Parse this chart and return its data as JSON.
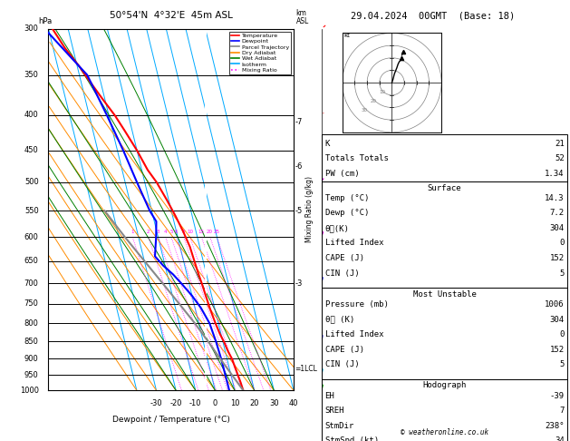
{
  "title_left": "50°54'N  4°32'E  45m ASL",
  "title_right": "29.04.2024  00GMT  (Base: 18)",
  "xlabel": "Dewpoint / Temperature (°C)",
  "pres_levels": [
    300,
    350,
    400,
    450,
    500,
    550,
    600,
    650,
    700,
    750,
    800,
    850,
    900,
    950,
    1000
  ],
  "pmin": 300,
  "pmax": 1000,
  "tmin": -40,
  "tmax": 40,
  "skew_factor": 45,
  "temp_profile_pres": [
    300,
    320,
    340,
    360,
    380,
    400,
    420,
    450,
    480,
    500,
    530,
    560,
    590,
    620,
    650,
    680,
    700,
    730,
    760,
    800,
    830,
    850,
    880,
    900,
    925,
    950,
    975,
    1000
  ],
  "temp_profile_temp": [
    -38,
    -34,
    -29,
    -25,
    -21,
    -17,
    -14,
    -10,
    -7,
    -4,
    -1,
    1.5,
    3.5,
    5,
    5.5,
    6,
    6.5,
    7,
    7.5,
    8.5,
    9.5,
    10.5,
    11.5,
    12.5,
    13,
    13.5,
    14,
    14.3
  ],
  "dewp_profile_pres": [
    300,
    350,
    400,
    450,
    500,
    550,
    570,
    600,
    640,
    660,
    680,
    700,
    730,
    760,
    800,
    850,
    900,
    950,
    1000
  ],
  "dewp_profile_temp": [
    -42,
    -26,
    -21,
    -17,
    -14,
    -11,
    -9,
    -11,
    -14,
    -11,
    -7,
    -4,
    0,
    3,
    5.5,
    6.5,
    7,
    7.1,
    7.2
  ],
  "parcel_profile_pres": [
    1000,
    950,
    900,
    850,
    800,
    750,
    700,
    650,
    600,
    550
  ],
  "parcel_profile_temp": [
    14.3,
    10.5,
    6.5,
    2.5,
    -2,
    -7.5,
    -13.5,
    -20,
    -27,
    -34
  ],
  "lcl_pressure": 930,
  "mixing_ratios": [
    1,
    2,
    3,
    4,
    5,
    6,
    8,
    10,
    15,
    20,
    25
  ],
  "km_asl": [
    {
      "km": 7,
      "pres": 410
    },
    {
      "km": 6,
      "pres": 475
    },
    {
      "km": 5,
      "pres": 550
    },
    {
      "km": 3,
      "pres": 700
    }
  ],
  "wind_barbs": [
    {
      "pres": 300,
      "speed": 35,
      "dir": 250,
      "color": "#FF0000"
    },
    {
      "pres": 400,
      "speed": 25,
      "dir": 245,
      "color": "#FF0000"
    },
    {
      "pres": 500,
      "speed": 15,
      "dir": 230,
      "color": "#CC00CC"
    },
    {
      "pres": 600,
      "speed": 10,
      "dir": 215,
      "color": "#CC00CC"
    },
    {
      "pres": 700,
      "speed": 8,
      "dir": 205,
      "color": "#0000FF"
    },
    {
      "pres": 850,
      "speed": 6,
      "dir": 200,
      "color": "#0000FF"
    },
    {
      "pres": 950,
      "speed": 5,
      "dir": 205,
      "color": "#00AAFF"
    },
    {
      "pres": 1000,
      "speed": 4,
      "dir": 210,
      "color": "#00AA00"
    }
  ],
  "colors": {
    "temperature": "#FF0000",
    "dewpoint": "#0000FF",
    "parcel": "#888888",
    "dry_adiabat": "#FF8C00",
    "wet_adiabat": "#008000",
    "isotherm": "#00AAFF",
    "mixing_ratio": "#FF00FF",
    "background": "#FFFFFF",
    "border": "#000000"
  },
  "legend_items": [
    {
      "label": "Temperature",
      "color": "#FF0000",
      "ls": "-"
    },
    {
      "label": "Dewpoint",
      "color": "#0000FF",
      "ls": "-"
    },
    {
      "label": "Parcel Trajectory",
      "color": "#888888",
      "ls": "-"
    },
    {
      "label": "Dry Adiabat",
      "color": "#FF8C00",
      "ls": "-"
    },
    {
      "label": "Wet Adiabat",
      "color": "#008000",
      "ls": "-"
    },
    {
      "label": "Isotherm",
      "color": "#00AAFF",
      "ls": "-"
    },
    {
      "label": "Mixing Ratio",
      "color": "#FF00FF",
      "ls": ":"
    }
  ],
  "stats_K": 21,
  "stats_TT": 52,
  "stats_PW": "1.34",
  "surf_temp": "14.3",
  "surf_dewp": "7.2",
  "surf_theta_e": "304",
  "surf_li": "0",
  "surf_cape": "152",
  "surf_cin": "5",
  "mu_pres": "1006",
  "mu_theta_e": "304",
  "mu_li": "0",
  "mu_cape": "152",
  "mu_cin": "5",
  "hodo_EH": "-39",
  "hodo_SREH": "7",
  "hodo_StmDir": "238°",
  "hodo_StmSpd": "34",
  "copyright": "© weatheronline.co.uk",
  "hodograph_u": [
    0,
    1,
    2,
    4,
    5,
    6,
    7,
    8
  ],
  "hodograph_v": [
    0,
    3,
    7,
    12,
    15,
    17,
    18,
    20
  ],
  "hodograph_storm_u": [
    8,
    9
  ],
  "hodograph_storm_v": [
    22,
    25
  ]
}
